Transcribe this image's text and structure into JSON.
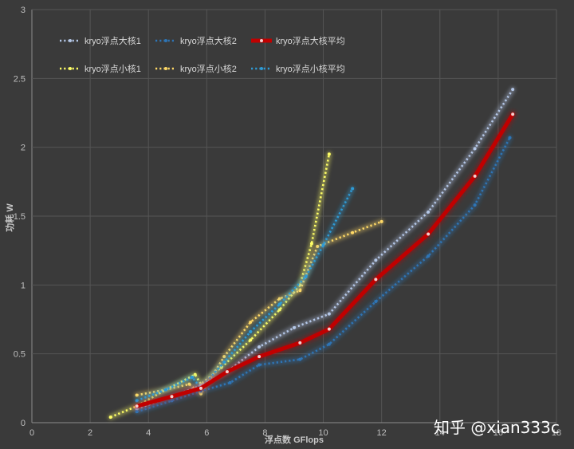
{
  "chart_data": {
    "type": "line",
    "xlabel": "浮点数 GFlops",
    "ylabel": "功耗 W",
    "xlim": [
      0,
      18
    ],
    "ylim": [
      0,
      3
    ],
    "xticks": [
      "0",
      "2",
      "4",
      "6",
      "8",
      "10",
      "12",
      "14",
      "16",
      "18"
    ],
    "yticks": [
      "0",
      "0.5",
      "1",
      "1.5",
      "2",
      "2.5",
      "3"
    ],
    "grid": true,
    "legend_position": "top-left",
    "series": [
      {
        "name": "kryo浮点大核1",
        "color": "#b4c7e7",
        "style": "dotted",
        "points": [
          [
            3.6,
            0.1
          ],
          [
            4.8,
            0.19
          ],
          [
            5.8,
            0.27
          ],
          [
            6.7,
            0.37
          ],
          [
            7.8,
            0.55
          ],
          [
            9,
            0.69
          ],
          [
            10.2,
            0.79
          ],
          [
            11.8,
            1.18
          ],
          [
            13.6,
            1.53
          ],
          [
            15.2,
            1.99
          ],
          [
            16.5,
            2.42
          ]
        ]
      },
      {
        "name": "kryo浮点大核2",
        "color": "#2e75b6",
        "style": "dotted",
        "points": [
          [
            3.6,
            0.08
          ],
          [
            4.8,
            0.16
          ],
          [
            5.8,
            0.23
          ],
          [
            6.8,
            0.29
          ],
          [
            7.8,
            0.42
          ],
          [
            9.2,
            0.46
          ],
          [
            10.2,
            0.57
          ],
          [
            11.8,
            0.88
          ],
          [
            13.6,
            1.21
          ],
          [
            15.2,
            1.58
          ],
          [
            16.4,
            2.07
          ]
        ]
      },
      {
        "name": "kryo浮点大核平均",
        "color": "#c00000",
        "style": "solid",
        "points": [
          [
            3.6,
            0.12
          ],
          [
            4.8,
            0.19
          ],
          [
            5.8,
            0.25
          ],
          [
            6.7,
            0.37
          ],
          [
            7.8,
            0.48
          ],
          [
            9.2,
            0.58
          ],
          [
            10.2,
            0.68
          ],
          [
            11.8,
            1.04
          ],
          [
            13.6,
            1.37
          ],
          [
            15.2,
            1.79
          ],
          [
            16.5,
            2.24
          ]
        ]
      },
      {
        "name": "kryo浮点小核1",
        "color": "#ffff66",
        "style": "dotted",
        "points": [
          [
            2.7,
            0.04
          ],
          [
            3.6,
            0.12
          ],
          [
            4.6,
            0.24
          ],
          [
            5.6,
            0.35
          ],
          [
            5.8,
            0.28
          ],
          [
            6.5,
            0.4
          ],
          [
            7.5,
            0.6
          ],
          [
            8.5,
            0.82
          ],
          [
            9.2,
            1.0
          ],
          [
            9.6,
            1.3
          ],
          [
            10.2,
            1.95
          ]
        ]
      },
      {
        "name": "kryo浮点小核2",
        "color": "#ffd966",
        "style": "dotted",
        "points": [
          [
            3.6,
            0.2
          ],
          [
            4.6,
            0.24
          ],
          [
            5.4,
            0.28
          ],
          [
            5.8,
            0.21
          ],
          [
            6.6,
            0.48
          ],
          [
            7.5,
            0.73
          ],
          [
            8.5,
            0.9
          ],
          [
            9.2,
            0.96
          ],
          [
            9.8,
            1.28
          ],
          [
            11,
            1.38
          ],
          [
            12,
            1.46
          ]
        ]
      },
      {
        "name": "kryo浮点小核平均",
        "color": "#2e9bd6",
        "style": "dotted",
        "points": [
          [
            3.6,
            0.16
          ],
          [
            4.6,
            0.24
          ],
          [
            5.5,
            0.33
          ],
          [
            5.8,
            0.25
          ],
          [
            6.6,
            0.44
          ],
          [
            7.5,
            0.66
          ],
          [
            8.5,
            0.86
          ],
          [
            9.4,
            1.06
          ],
          [
            10,
            1.29
          ],
          [
            11,
            1.7
          ]
        ]
      }
    ]
  },
  "watermark": "知乎 @xian333c"
}
